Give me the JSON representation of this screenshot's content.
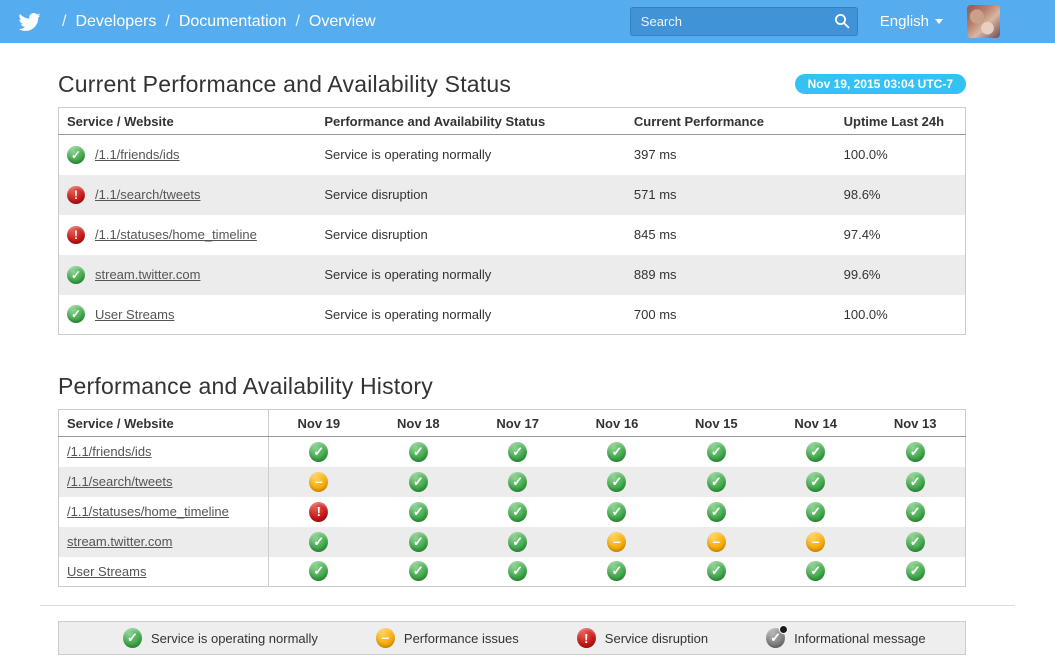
{
  "navbar": {
    "logo_icon": "twitter-bird-icon",
    "breadcrumb": [
      "Developers",
      "Documentation",
      "Overview"
    ],
    "breadcrumb_separator": "/",
    "search": {
      "placeholder": "Search",
      "icon": "magnifier-icon"
    },
    "language": {
      "label": "English",
      "icon": "chevron-down-icon"
    },
    "avatar_icon": "user-avatar-photo"
  },
  "status_section": {
    "title": "Current Performance and Availability Status",
    "timestamp_badge": "Nov 19, 2015 03:04 UTC-7",
    "table": {
      "headers": [
        "Service / Website",
        "Performance and Availability Status",
        "Current Performance",
        "Uptime Last 24h"
      ],
      "rows": [
        {
          "service": "/1.1/friends/ids",
          "status": "ok",
          "status_text": "Service is operating normally",
          "performance": "397 ms",
          "uptime": "100.0%"
        },
        {
          "service": "/1.1/search/tweets",
          "status": "error",
          "status_text": "Service disruption",
          "performance": "571 ms",
          "uptime": "98.6%"
        },
        {
          "service": "/1.1/statuses/home_timeline",
          "status": "error",
          "status_text": "Service disruption",
          "performance": "845 ms",
          "uptime": "97.4%"
        },
        {
          "service": "stream.twitter.com",
          "status": "ok",
          "status_text": "Service is operating normally",
          "performance": "889 ms",
          "uptime": "99.6%"
        },
        {
          "service": "User Streams",
          "status": "ok",
          "status_text": "Service is operating normally",
          "performance": "700 ms",
          "uptime": "100.0%"
        }
      ]
    }
  },
  "history_section": {
    "title": "Performance and Availability History",
    "table": {
      "service_header": "Service / Website",
      "date_headers": [
        "Nov 19",
        "Nov 18",
        "Nov 17",
        "Nov 16",
        "Nov 15",
        "Nov 14",
        "Nov 13"
      ],
      "rows": [
        {
          "service": "/1.1/friends/ids",
          "statuses": [
            "ok",
            "ok",
            "ok",
            "ok",
            "ok",
            "ok",
            "ok"
          ]
        },
        {
          "service": "/1.1/search/tweets",
          "statuses": [
            "warn",
            "ok",
            "ok",
            "ok",
            "ok",
            "ok",
            "ok"
          ]
        },
        {
          "service": "/1.1/statuses/home_timeline",
          "statuses": [
            "error",
            "ok",
            "ok",
            "ok",
            "ok",
            "ok",
            "ok"
          ]
        },
        {
          "service": "stream.twitter.com",
          "statuses": [
            "ok",
            "ok",
            "ok",
            "warn",
            "warn",
            "warn",
            "ok"
          ]
        },
        {
          "service": "User Streams",
          "statuses": [
            "ok",
            "ok",
            "ok",
            "ok",
            "ok",
            "ok",
            "ok"
          ]
        }
      ]
    }
  },
  "legend": {
    "items": [
      {
        "status": "ok",
        "icon": "check-circle-icon",
        "label": "Service is operating normally"
      },
      {
        "status": "warn",
        "icon": "dash-circle-icon",
        "label": "Performance issues"
      },
      {
        "status": "error",
        "icon": "exclamation-circle-icon",
        "label": "Service disruption"
      },
      {
        "status": "info",
        "icon": "check-badge-icon",
        "label": "Informational message"
      }
    ]
  },
  "status_glyphs": {
    "ok": "✓",
    "warn": "–",
    "error": "!",
    "info": "✓"
  },
  "colors": {
    "navbar_blue": "#55acee",
    "badge_cyan": "#34c2f2",
    "ok_green": "#3aa546",
    "warn_orange": "#f5a800",
    "error_red": "#c41414",
    "info_gray": "#7d7d7d",
    "disruption_text": "#cc0000"
  }
}
